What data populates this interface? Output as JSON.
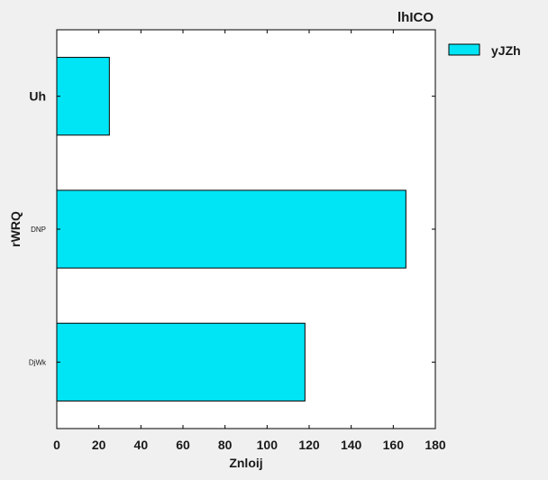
{
  "chart_data": {
    "type": "bar",
    "orientation": "horizontal",
    "title": "lhICO",
    "xlabel": "Znloij",
    "ylabel": "rWRQ",
    "xlim": [
      0,
      180
    ],
    "xticks": [
      0,
      20,
      40,
      60,
      80,
      100,
      120,
      140,
      160,
      180
    ],
    "categories": [
      "Uh",
      "DNP",
      "DjWk"
    ],
    "series": [
      {
        "name": "yJZh",
        "values": [
          25,
          166,
          118
        ]
      }
    ],
    "colors": {
      "bar": "#00e5f5",
      "edge": "#000000"
    },
    "grid": false,
    "legend_position": "outside-top-right"
  }
}
